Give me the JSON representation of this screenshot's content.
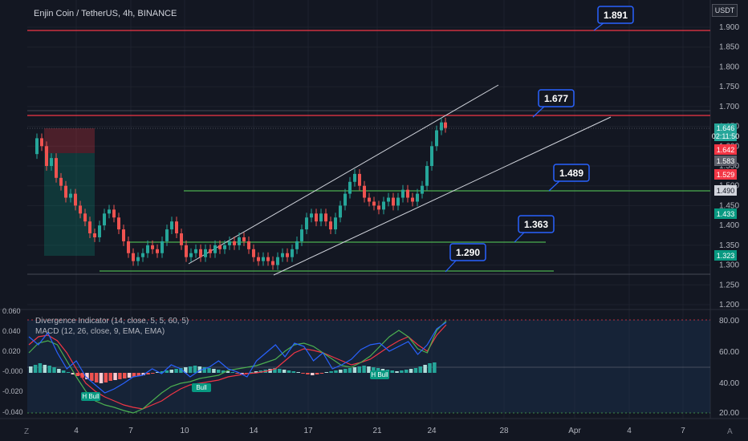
{
  "header": {
    "symbol": "Enjin Coin / TetherUS, 4h, BINANCE",
    "currency": "USDT"
  },
  "indicators": {
    "divergence": "Divergence Indicator (14, close, 5, 5, 60, 5)",
    "macd": "MACD (12, 26, close, 9, EMA, EMA)"
  },
  "price_axis": [
    "1.900",
    "1.850",
    "1.800",
    "1.750",
    "1.700",
    "1.650",
    "1.600",
    "1.550",
    "1.500",
    "1.450",
    "1.400",
    "1.350",
    "1.300",
    "1.250",
    "1.200"
  ],
  "price_tags": {
    "last": "1.646",
    "countdown": "02:11:50",
    "tag_1642": "1.642",
    "tag_1583": "1.583",
    "tag_1529": "1.529",
    "tag_1490": "1.490",
    "tag_1433": "1.433",
    "tag_1323": "1.323"
  },
  "annotations": [
    "1.891",
    "1.677",
    "1.489",
    "1.363",
    "1.290"
  ],
  "macd_axis": [
    "0.060",
    "0.040",
    "0.020",
    "-0.000",
    "-0.020",
    "-0.040"
  ],
  "rsi_axis": [
    "80.00",
    "60.00",
    "40.00",
    "20.00"
  ],
  "time_axis": [
    "4",
    "7",
    "10",
    "14",
    "17",
    "21",
    "24",
    "28",
    "Apr",
    "4",
    "7"
  ],
  "bottom_corner": {
    "left": "Z",
    "right": "A"
  },
  "signal_labels": [
    "H Bull",
    "Bull",
    "H Bull"
  ],
  "colors": {
    "bg": "#131722",
    "up": "#26a69a",
    "down": "#ef5350",
    "support": "#4caf50",
    "resistance": "#f23645",
    "label_border": "#2962ff"
  }
}
